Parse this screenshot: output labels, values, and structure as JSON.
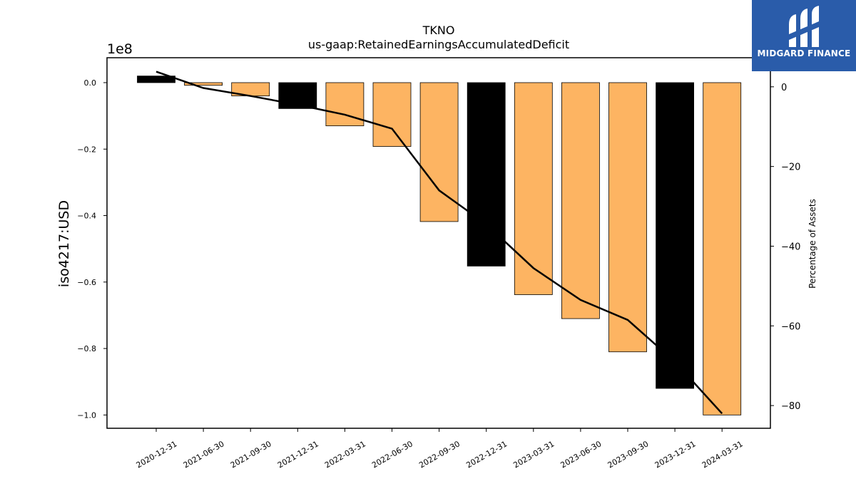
{
  "chart_data": {
    "type": "bar",
    "title": "TKNO",
    "subtitle": "us-gaap:RetainedEarningsAccumulatedDeficit",
    "ylabel": "iso4217:USD",
    "y2label": "Percentage of Assets",
    "y_multiplier_label": "1e8",
    "categories": [
      "2020-12-31",
      "2021-06-30",
      "2021-09-30",
      "2021-12-31",
      "2022-03-31",
      "2022-06-30",
      "2022-09-30",
      "2022-12-31",
      "2023-03-31",
      "2023-06-30",
      "2023-09-30",
      "2023-12-31",
      "2024-03-31"
    ],
    "series": [
      {
        "axis": "left",
        "values": [
          2000000,
          -800000,
          -4000000,
          -7800000,
          -13000000,
          -19200000,
          -41800000,
          -55200000,
          -63800000,
          -71000000,
          -81000000,
          -92000000,
          -100000000
        ],
        "colors": [
          "#000000",
          "#fdb462",
          "#fdb462",
          "#000000",
          "#fdb462",
          "#fdb462",
          "#fdb462",
          "#000000",
          "#fdb462",
          "#fdb462",
          "#fdb462",
          "#000000",
          "#fdb462"
        ]
      },
      {
        "type": "line",
        "axis": "right",
        "color": "#000000",
        "values": [
          3.8,
          -0.3,
          -2.3,
          -4.5,
          -7.0,
          -10.5,
          -26.0,
          -34.5,
          -45.5,
          -53.5,
          -58.5,
          -69.0,
          -82.0
        ]
      }
    ],
    "y_ticks": [
      0.0,
      -0.2,
      -0.4,
      -0.6,
      -0.8,
      -1.0
    ],
    "y_tick_labels": [
      "0.0",
      "−0.2",
      "−0.4",
      "−0.6",
      "−0.8",
      "−1.0"
    ],
    "y2_ticks": [
      0,
      -20,
      -40,
      -60,
      -80
    ],
    "y2_tick_labels": [
      "0",
      "−20",
      "−40",
      "−60",
      "−80"
    ],
    "ylim": [
      -104000000,
      7500000
    ],
    "y2lim": [
      -85.7,
      7.3
    ],
    "grid": false
  },
  "logo": {
    "text": "MIDGARD FINANCE"
  }
}
